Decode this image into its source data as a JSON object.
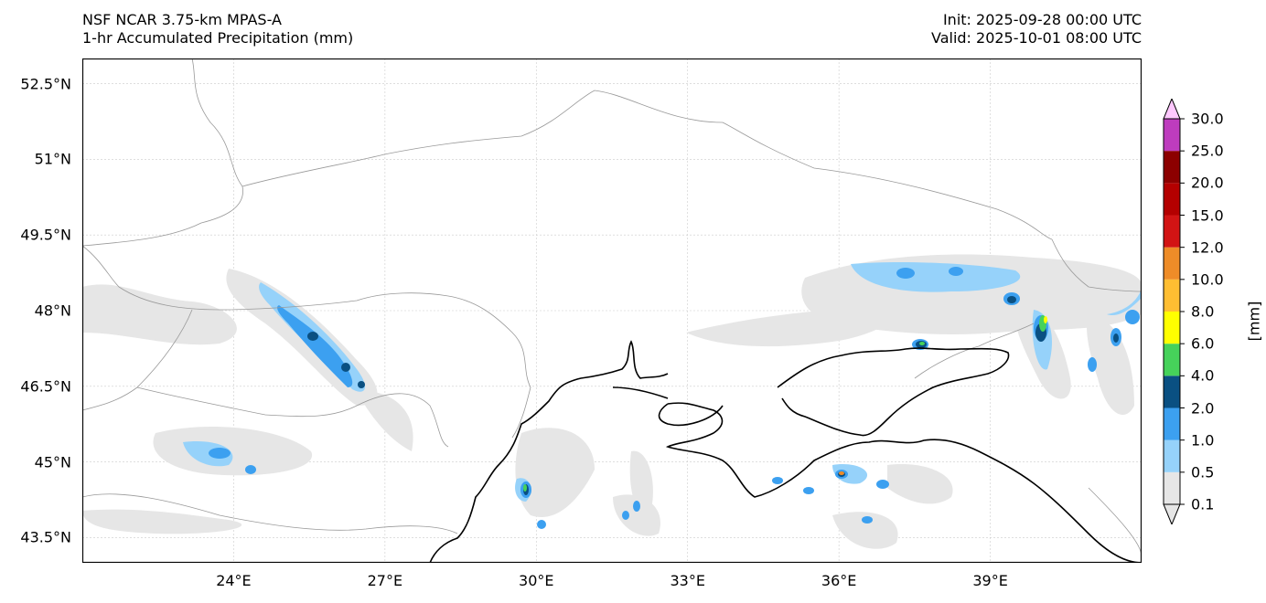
{
  "header": {
    "model": "NSF NCAR 3.75-km MPAS-A",
    "field": "1-hr Accumulated Precipitation (mm)",
    "init": "Init: 2025-09-28 00:00 UTC",
    "valid": "Valid: 2025-10-01 08:00 UTC"
  },
  "axes": {
    "lat_labels": [
      {
        "value": 52.5,
        "text": "52.5°N"
      },
      {
        "value": 51,
        "text": "51°N"
      },
      {
        "value": 49.5,
        "text": "49.5°N"
      },
      {
        "value": 48,
        "text": "48°N"
      },
      {
        "value": 46.5,
        "text": "46.5°N"
      },
      {
        "value": 45,
        "text": "45°N"
      },
      {
        "value": 43.5,
        "text": "43.5°N"
      }
    ],
    "lon_labels": [
      {
        "value": 24,
        "text": "24°E"
      },
      {
        "value": 27,
        "text": "27°E"
      },
      {
        "value": 30,
        "text": "30°E"
      },
      {
        "value": 33,
        "text": "33°E"
      },
      {
        "value": 36,
        "text": "36°E"
      },
      {
        "value": 39,
        "text": "39°E"
      }
    ],
    "lon_range": [
      21,
      42
    ],
    "lat_range": [
      43,
      53
    ],
    "grid": true
  },
  "colorbar": {
    "title": "[mm]",
    "levels": [
      "0.1",
      "0.5",
      "1.0",
      "2.0",
      "4.0",
      "6.0",
      "8.0",
      "10.0",
      "12.0",
      "15.0",
      "20.0",
      "25.0",
      "30.0"
    ],
    "colors": [
      "#e6e6e6",
      "#96d2fa",
      "#3ca0f0",
      "#0a5082",
      "#46d25a",
      "#ffff00",
      "#ffbe32",
      "#ee8c28",
      "#d21414",
      "#b40000",
      "#8c0000",
      "#be3cbe",
      "#ffc8ff"
    ],
    "extend": "both"
  }
}
